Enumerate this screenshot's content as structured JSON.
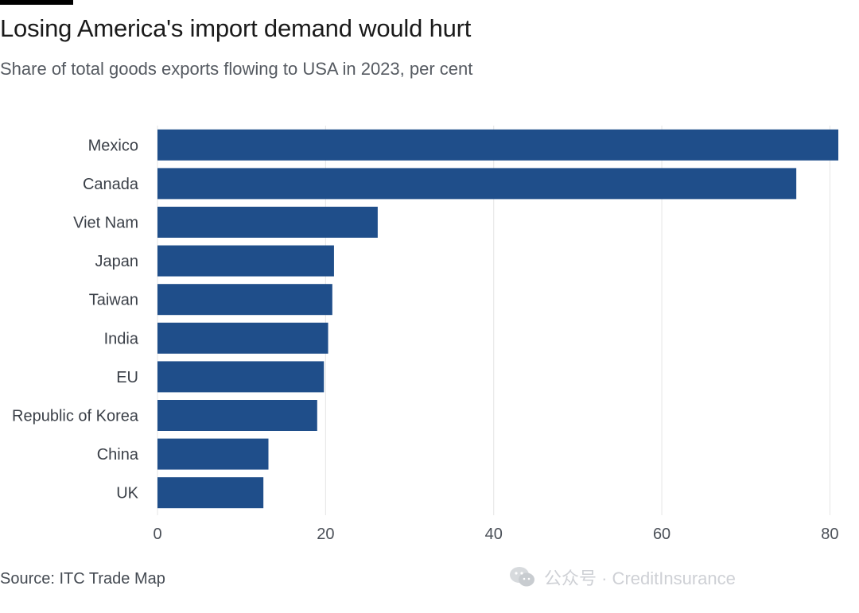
{
  "header": {
    "title": "Losing America's import demand would hurt",
    "subtitle": "Share of total goods exports flowing to USA in 2023, per cent"
  },
  "footer": {
    "source": "Source: ITC Trade Map"
  },
  "watermark": {
    "text": "公众号 · CreditInsurance",
    "icon": "wechat-icon"
  },
  "colors": {
    "bar": "#1f4e8a",
    "grid": "#e4e4e4",
    "axis_text": "#4a4f57",
    "label_text": "#3a3f47"
  },
  "chart_data": {
    "type": "bar",
    "orientation": "horizontal",
    "categories": [
      "Mexico",
      "Canada",
      "Viet Nam",
      "Japan",
      "Taiwan",
      "India",
      "EU",
      "Republic of Korea",
      "China",
      "UK"
    ],
    "values": [
      81,
      76,
      26.2,
      21,
      20.8,
      20.3,
      19.8,
      19,
      13.2,
      12.6
    ],
    "xlim": [
      0,
      81
    ],
    "xticks": [
      0,
      20,
      40,
      60,
      80
    ],
    "grid": true,
    "title": "Losing America's import demand would hurt",
    "subtitle": "Share of total goods exports flowing to USA in 2023, per cent",
    "xlabel": "",
    "ylabel": ""
  }
}
